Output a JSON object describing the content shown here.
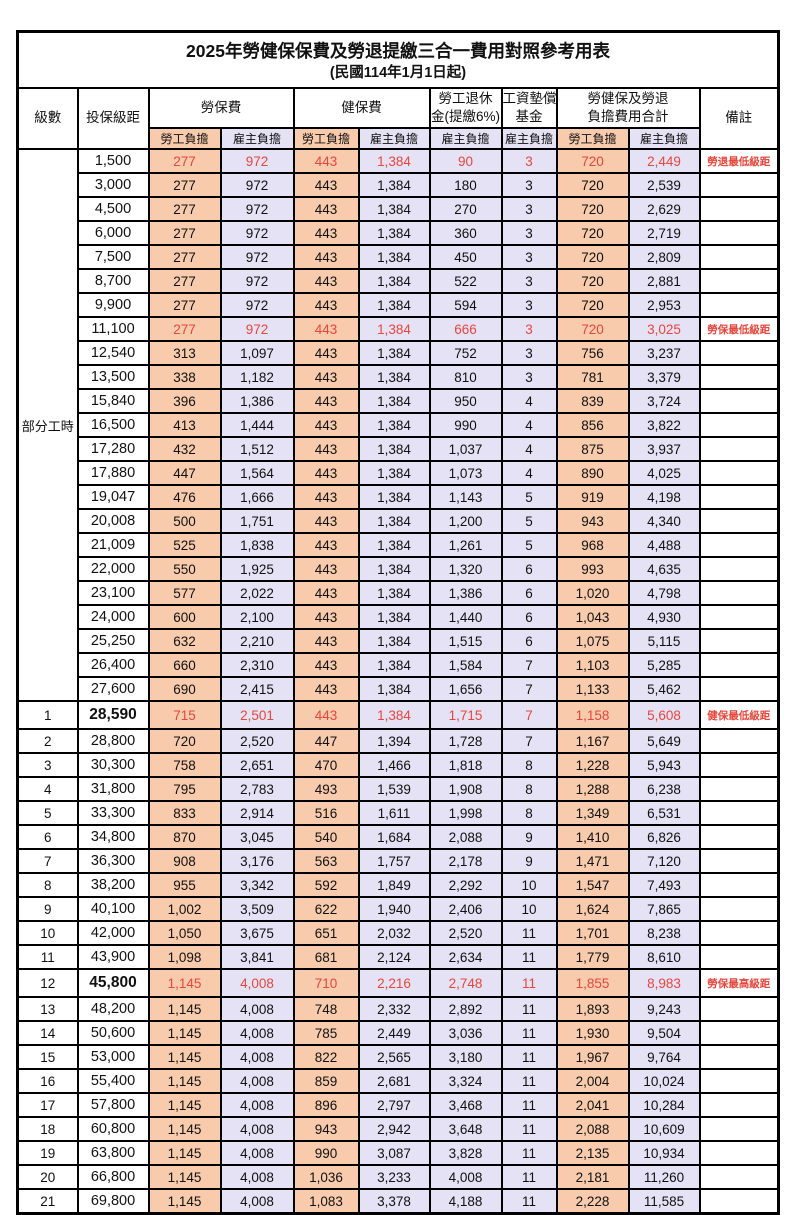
{
  "title": "2025年勞健保保費及勞退提繳三合一費用對照參考用表",
  "subtitle": "(民國114年1月1日起)",
  "colors": {
    "employee_column_bg": "#F8CBAD",
    "employer_column_bg": "#E4E2F4",
    "highlight_text": "#E8463C"
  },
  "header": {
    "level": "級數",
    "bracket": "投保級距",
    "labor_insurance": "勞保費",
    "health_insurance": "健保費",
    "pension_line1": "勞工退休",
    "pension_line2": "金(提繳6%)",
    "wage_fund_line1": "工資墊償",
    "wage_fund_line2": "基金",
    "total_line1": "勞健保及勞退",
    "total_line2": "負擔費用合計",
    "remark": "備註",
    "employee_burden": "勞工負擔",
    "employer_burden": "雇主負擔"
  },
  "part_time_label": "部分工時",
  "rows": [
    {
      "level": "",
      "bracket": "1,500",
      "cells": [
        "277",
        "972",
        "443",
        "1,384",
        "90",
        "3",
        "720",
        "2,449"
      ],
      "remark": "勞退最低級距",
      "hl": true
    },
    {
      "level": "",
      "bracket": "3,000",
      "cells": [
        "277",
        "972",
        "443",
        "1,384",
        "180",
        "3",
        "720",
        "2,539"
      ],
      "remark": ""
    },
    {
      "level": "",
      "bracket": "4,500",
      "cells": [
        "277",
        "972",
        "443",
        "1,384",
        "270",
        "3",
        "720",
        "2,629"
      ],
      "remark": ""
    },
    {
      "level": "",
      "bracket": "6,000",
      "cells": [
        "277",
        "972",
        "443",
        "1,384",
        "360",
        "3",
        "720",
        "2,719"
      ],
      "remark": ""
    },
    {
      "level": "",
      "bracket": "7,500",
      "cells": [
        "277",
        "972",
        "443",
        "1,384",
        "450",
        "3",
        "720",
        "2,809"
      ],
      "remark": ""
    },
    {
      "level": "",
      "bracket": "8,700",
      "cells": [
        "277",
        "972",
        "443",
        "1,384",
        "522",
        "3",
        "720",
        "2,881"
      ],
      "remark": ""
    },
    {
      "level": "",
      "bracket": "9,900",
      "cells": [
        "277",
        "972",
        "443",
        "1,384",
        "594",
        "3",
        "720",
        "2,953"
      ],
      "remark": ""
    },
    {
      "level": "",
      "bracket": "11,100",
      "cells": [
        "277",
        "972",
        "443",
        "1,384",
        "666",
        "3",
        "720",
        "3,025"
      ],
      "remark": "勞保最低級距",
      "hl": true
    },
    {
      "level": "",
      "bracket": "12,540",
      "cells": [
        "313",
        "1,097",
        "443",
        "1,384",
        "752",
        "3",
        "756",
        "3,237"
      ],
      "remark": ""
    },
    {
      "level": "",
      "bracket": "13,500",
      "cells": [
        "338",
        "1,182",
        "443",
        "1,384",
        "810",
        "3",
        "781",
        "3,379"
      ],
      "remark": ""
    },
    {
      "level": "",
      "bracket": "15,840",
      "cells": [
        "396",
        "1,386",
        "443",
        "1,384",
        "950",
        "4",
        "839",
        "3,724"
      ],
      "remark": ""
    },
    {
      "level": "",
      "bracket": "16,500",
      "cells": [
        "413",
        "1,444",
        "443",
        "1,384",
        "990",
        "4",
        "856",
        "3,822"
      ],
      "remark": ""
    },
    {
      "level": "",
      "bracket": "17,280",
      "cells": [
        "432",
        "1,512",
        "443",
        "1,384",
        "1,037",
        "4",
        "875",
        "3,937"
      ],
      "remark": ""
    },
    {
      "level": "",
      "bracket": "17,880",
      "cells": [
        "447",
        "1,564",
        "443",
        "1,384",
        "1,073",
        "4",
        "890",
        "4,025"
      ],
      "remark": ""
    },
    {
      "level": "",
      "bracket": "19,047",
      "cells": [
        "476",
        "1,666",
        "443",
        "1,384",
        "1,143",
        "5",
        "919",
        "4,198"
      ],
      "remark": ""
    },
    {
      "level": "",
      "bracket": "20,008",
      "cells": [
        "500",
        "1,751",
        "443",
        "1,384",
        "1,200",
        "5",
        "943",
        "4,340"
      ],
      "remark": ""
    },
    {
      "level": "",
      "bracket": "21,009",
      "cells": [
        "525",
        "1,838",
        "443",
        "1,384",
        "1,261",
        "5",
        "968",
        "4,488"
      ],
      "remark": ""
    },
    {
      "level": "",
      "bracket": "22,000",
      "cells": [
        "550",
        "1,925",
        "443",
        "1,384",
        "1,320",
        "6",
        "993",
        "4,635"
      ],
      "remark": ""
    },
    {
      "level": "",
      "bracket": "23,100",
      "cells": [
        "577",
        "2,022",
        "443",
        "1,384",
        "1,386",
        "6",
        "1,020",
        "4,798"
      ],
      "remark": ""
    },
    {
      "level": "",
      "bracket": "24,000",
      "cells": [
        "600",
        "2,100",
        "443",
        "1,384",
        "1,440",
        "6",
        "1,043",
        "4,930"
      ],
      "remark": ""
    },
    {
      "level": "",
      "bracket": "25,250",
      "cells": [
        "632",
        "2,210",
        "443",
        "1,384",
        "1,515",
        "6",
        "1,075",
        "5,115"
      ],
      "remark": ""
    },
    {
      "level": "",
      "bracket": "26,400",
      "cells": [
        "660",
        "2,310",
        "443",
        "1,384",
        "1,584",
        "7",
        "1,103",
        "5,285"
      ],
      "remark": ""
    },
    {
      "level": "",
      "bracket": "27,600",
      "cells": [
        "690",
        "2,415",
        "443",
        "1,384",
        "1,656",
        "7",
        "1,133",
        "5,462"
      ],
      "remark": ""
    },
    {
      "level": "1",
      "bracket": "28,590",
      "cells": [
        "715",
        "2,501",
        "443",
        "1,384",
        "1,715",
        "7",
        "1,158",
        "5,608"
      ],
      "remark": "健保最低級距",
      "hl": true,
      "tall": true
    },
    {
      "level": "2",
      "bracket": "28,800",
      "cells": [
        "720",
        "2,520",
        "447",
        "1,394",
        "1,728",
        "7",
        "1,167",
        "5,649"
      ],
      "remark": ""
    },
    {
      "level": "3",
      "bracket": "30,300",
      "cells": [
        "758",
        "2,651",
        "470",
        "1,466",
        "1,818",
        "8",
        "1,228",
        "5,943"
      ],
      "remark": ""
    },
    {
      "level": "4",
      "bracket": "31,800",
      "cells": [
        "795",
        "2,783",
        "493",
        "1,539",
        "1,908",
        "8",
        "1,288",
        "6,238"
      ],
      "remark": ""
    },
    {
      "level": "5",
      "bracket": "33,300",
      "cells": [
        "833",
        "2,914",
        "516",
        "1,611",
        "1,998",
        "8",
        "1,349",
        "6,531"
      ],
      "remark": ""
    },
    {
      "level": "6",
      "bracket": "34,800",
      "cells": [
        "870",
        "3,045",
        "540",
        "1,684",
        "2,088",
        "9",
        "1,410",
        "6,826"
      ],
      "remark": ""
    },
    {
      "level": "7",
      "bracket": "36,300",
      "cells": [
        "908",
        "3,176",
        "563",
        "1,757",
        "2,178",
        "9",
        "1,471",
        "7,120"
      ],
      "remark": ""
    },
    {
      "level": "8",
      "bracket": "38,200",
      "cells": [
        "955",
        "3,342",
        "592",
        "1,849",
        "2,292",
        "10",
        "1,547",
        "7,493"
      ],
      "remark": ""
    },
    {
      "level": "9",
      "bracket": "40,100",
      "cells": [
        "1,002",
        "3,509",
        "622",
        "1,940",
        "2,406",
        "10",
        "1,624",
        "7,865"
      ],
      "remark": ""
    },
    {
      "level": "10",
      "bracket": "42,000",
      "cells": [
        "1,050",
        "3,675",
        "651",
        "2,032",
        "2,520",
        "11",
        "1,701",
        "8,238"
      ],
      "remark": ""
    },
    {
      "level": "11",
      "bracket": "43,900",
      "cells": [
        "1,098",
        "3,841",
        "681",
        "2,124",
        "2,634",
        "11",
        "1,779",
        "8,610"
      ],
      "remark": ""
    },
    {
      "level": "12",
      "bracket": "45,800",
      "cells": [
        "1,145",
        "4,008",
        "710",
        "2,216",
        "2,748",
        "11",
        "1,855",
        "8,983"
      ],
      "remark": "勞保最高級距",
      "hl": true,
      "tall": true
    },
    {
      "level": "13",
      "bracket": "48,200",
      "cells": [
        "1,145",
        "4,008",
        "748",
        "2,332",
        "2,892",
        "11",
        "1,893",
        "9,243"
      ],
      "remark": ""
    },
    {
      "level": "14",
      "bracket": "50,600",
      "cells": [
        "1,145",
        "4,008",
        "785",
        "2,449",
        "3,036",
        "11",
        "1,930",
        "9,504"
      ],
      "remark": ""
    },
    {
      "level": "15",
      "bracket": "53,000",
      "cells": [
        "1,145",
        "4,008",
        "822",
        "2,565",
        "3,180",
        "11",
        "1,967",
        "9,764"
      ],
      "remark": ""
    },
    {
      "level": "16",
      "bracket": "55,400",
      "cells": [
        "1,145",
        "4,008",
        "859",
        "2,681",
        "3,324",
        "11",
        "2,004",
        "10,024"
      ],
      "remark": ""
    },
    {
      "level": "17",
      "bracket": "57,800",
      "cells": [
        "1,145",
        "4,008",
        "896",
        "2,797",
        "3,468",
        "11",
        "2,041",
        "10,284"
      ],
      "remark": ""
    },
    {
      "level": "18",
      "bracket": "60,800",
      "cells": [
        "1,145",
        "4,008",
        "943",
        "2,942",
        "3,648",
        "11",
        "2,088",
        "10,609"
      ],
      "remark": ""
    },
    {
      "level": "19",
      "bracket": "63,800",
      "cells": [
        "1,145",
        "4,008",
        "990",
        "3,087",
        "3,828",
        "11",
        "2,135",
        "10,934"
      ],
      "remark": ""
    },
    {
      "level": "20",
      "bracket": "66,800",
      "cells": [
        "1,145",
        "4,008",
        "1,036",
        "3,233",
        "4,008",
        "11",
        "2,181",
        "11,260"
      ],
      "remark": ""
    },
    {
      "level": "21",
      "bracket": "69,800",
      "cells": [
        "1,145",
        "4,008",
        "1,083",
        "3,378",
        "4,188",
        "11",
        "2,228",
        "11,585"
      ],
      "remark": ""
    }
  ]
}
